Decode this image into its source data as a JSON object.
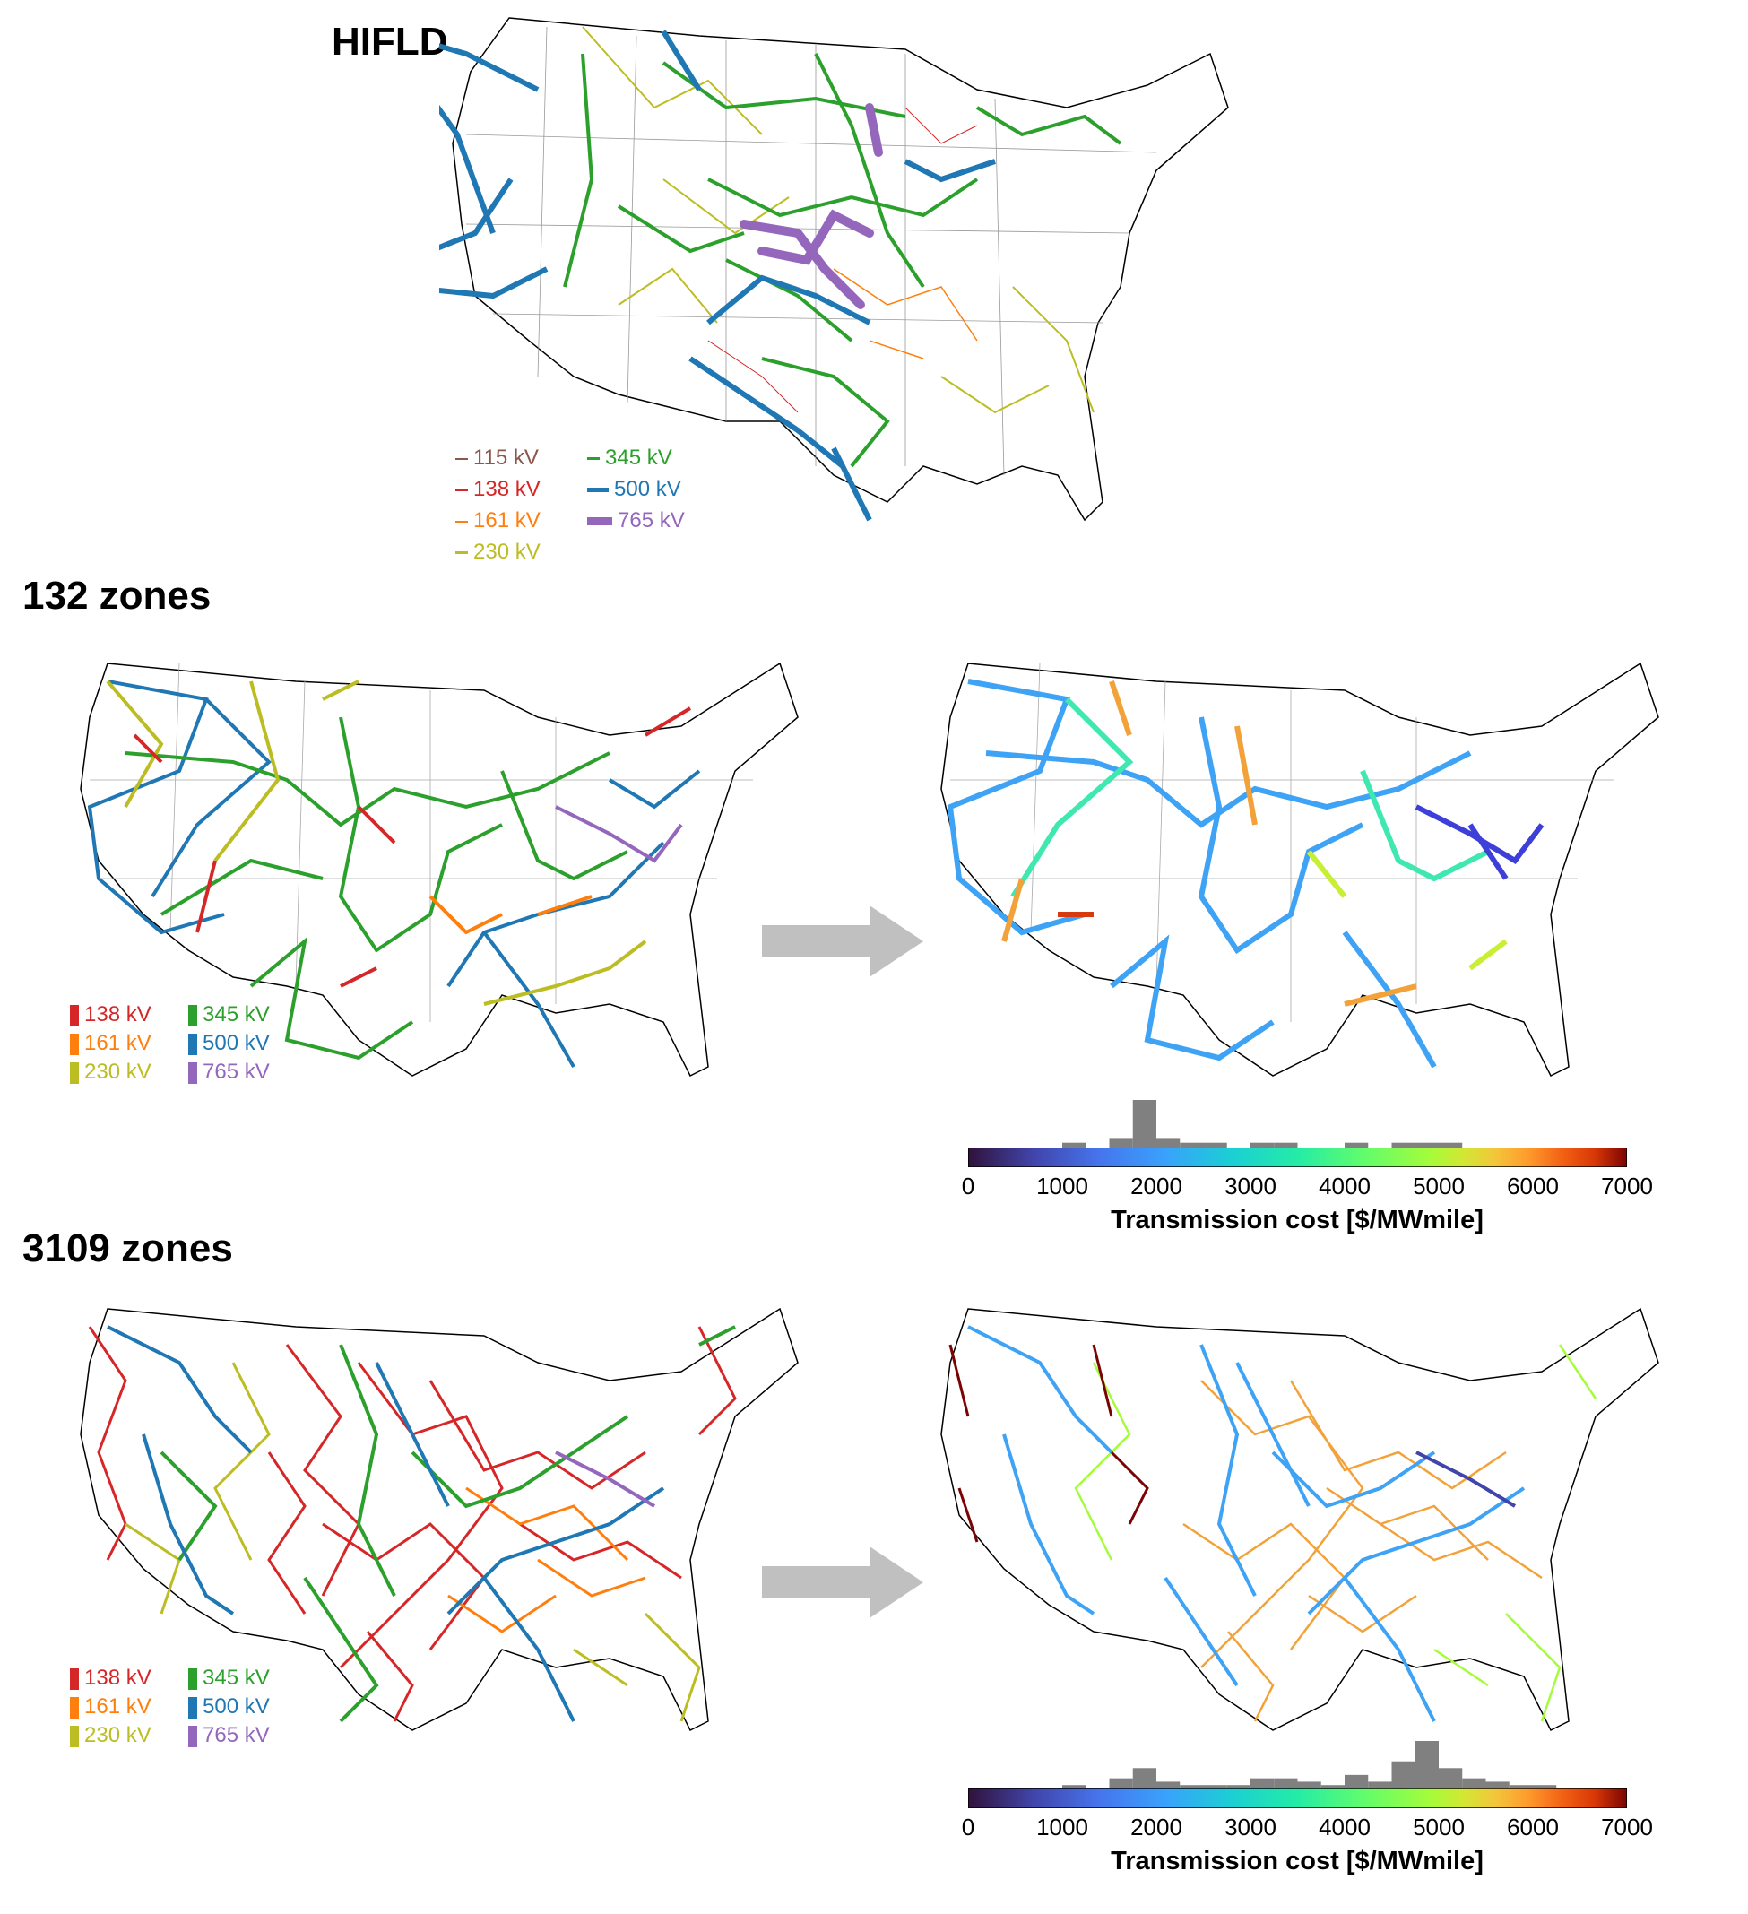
{
  "panels": {
    "hifld": {
      "title": "HIFLD"
    },
    "zones132": {
      "title": "132 zones"
    },
    "zones3109": {
      "title": "3109 zones"
    }
  },
  "colors": {
    "kv115": "#8c564b",
    "kv138": "#d62728",
    "kv161": "#ff7f0e",
    "kv230": "#bcbd22",
    "kv345": "#2ca02c",
    "kv500": "#1f77b4",
    "kv765": "#9467bd",
    "arrow": "#c0c0c0",
    "hist": "#808080"
  },
  "legend_hifld": [
    {
      "label": "115 kV",
      "color": "#8c564b"
    },
    {
      "label": "138 kV",
      "color": "#d62728"
    },
    {
      "label": "161 kV",
      "color": "#ff7f0e"
    },
    {
      "label": "230 kV",
      "color": "#bcbd22"
    },
    {
      "label": "345 kV",
      "color": "#2ca02c"
    },
    {
      "label": "500 kV",
      "color": "#1f77b4"
    },
    {
      "label": "765 kV",
      "color": "#9467bd"
    }
  ],
  "legend_zones": [
    {
      "label": "138 kV",
      "color": "#d62728"
    },
    {
      "label": "161 kV",
      "color": "#ff7f0e"
    },
    {
      "label": "230 kV",
      "color": "#bcbd22"
    },
    {
      "label": "345 kV",
      "color": "#2ca02c"
    },
    {
      "label": "500 kV",
      "color": "#1f77b4"
    },
    {
      "label": "765 kV",
      "color": "#9467bd"
    }
  ],
  "colorbar": {
    "label": "Transmission cost [$/MWmile]",
    "ticks": [
      "0",
      "1000",
      "2000",
      "3000",
      "4000",
      "5000",
      "6000",
      "7000"
    ],
    "min": 0,
    "max": 7000,
    "colormap": "turbo"
  },
  "histogram_132": {
    "bins": [
      0,
      250,
      500,
      750,
      1000,
      1250,
      1500,
      1750,
      2000,
      2250,
      2500,
      2750,
      3000,
      3250,
      3500,
      3750,
      4000,
      4250,
      4500,
      4750,
      5000,
      5250,
      5500,
      5750,
      6000,
      6250,
      6500,
      6750
    ],
    "counts": [
      0,
      0,
      0,
      0,
      1,
      0,
      2,
      10,
      2,
      1,
      1,
      0,
      1,
      1,
      0,
      0,
      1,
      0,
      1,
      1,
      1,
      0,
      0,
      0,
      0,
      0,
      0,
      0
    ]
  },
  "histogram_3109": {
    "bins": [
      0,
      250,
      500,
      750,
      1000,
      1250,
      1500,
      1750,
      2000,
      2250,
      2500,
      2750,
      3000,
      3250,
      3500,
      3750,
      4000,
      4250,
      4500,
      4750,
      5000,
      5250,
      5500,
      5750,
      6000,
      6250,
      6500,
      6750
    ],
    "counts": [
      0,
      0,
      0,
      0,
      1,
      0,
      3,
      6,
      2,
      1,
      1,
      1,
      3,
      3,
      2,
      1,
      4,
      2,
      8,
      14,
      6,
      3,
      2,
      1,
      1,
      0,
      0,
      0
    ]
  }
}
